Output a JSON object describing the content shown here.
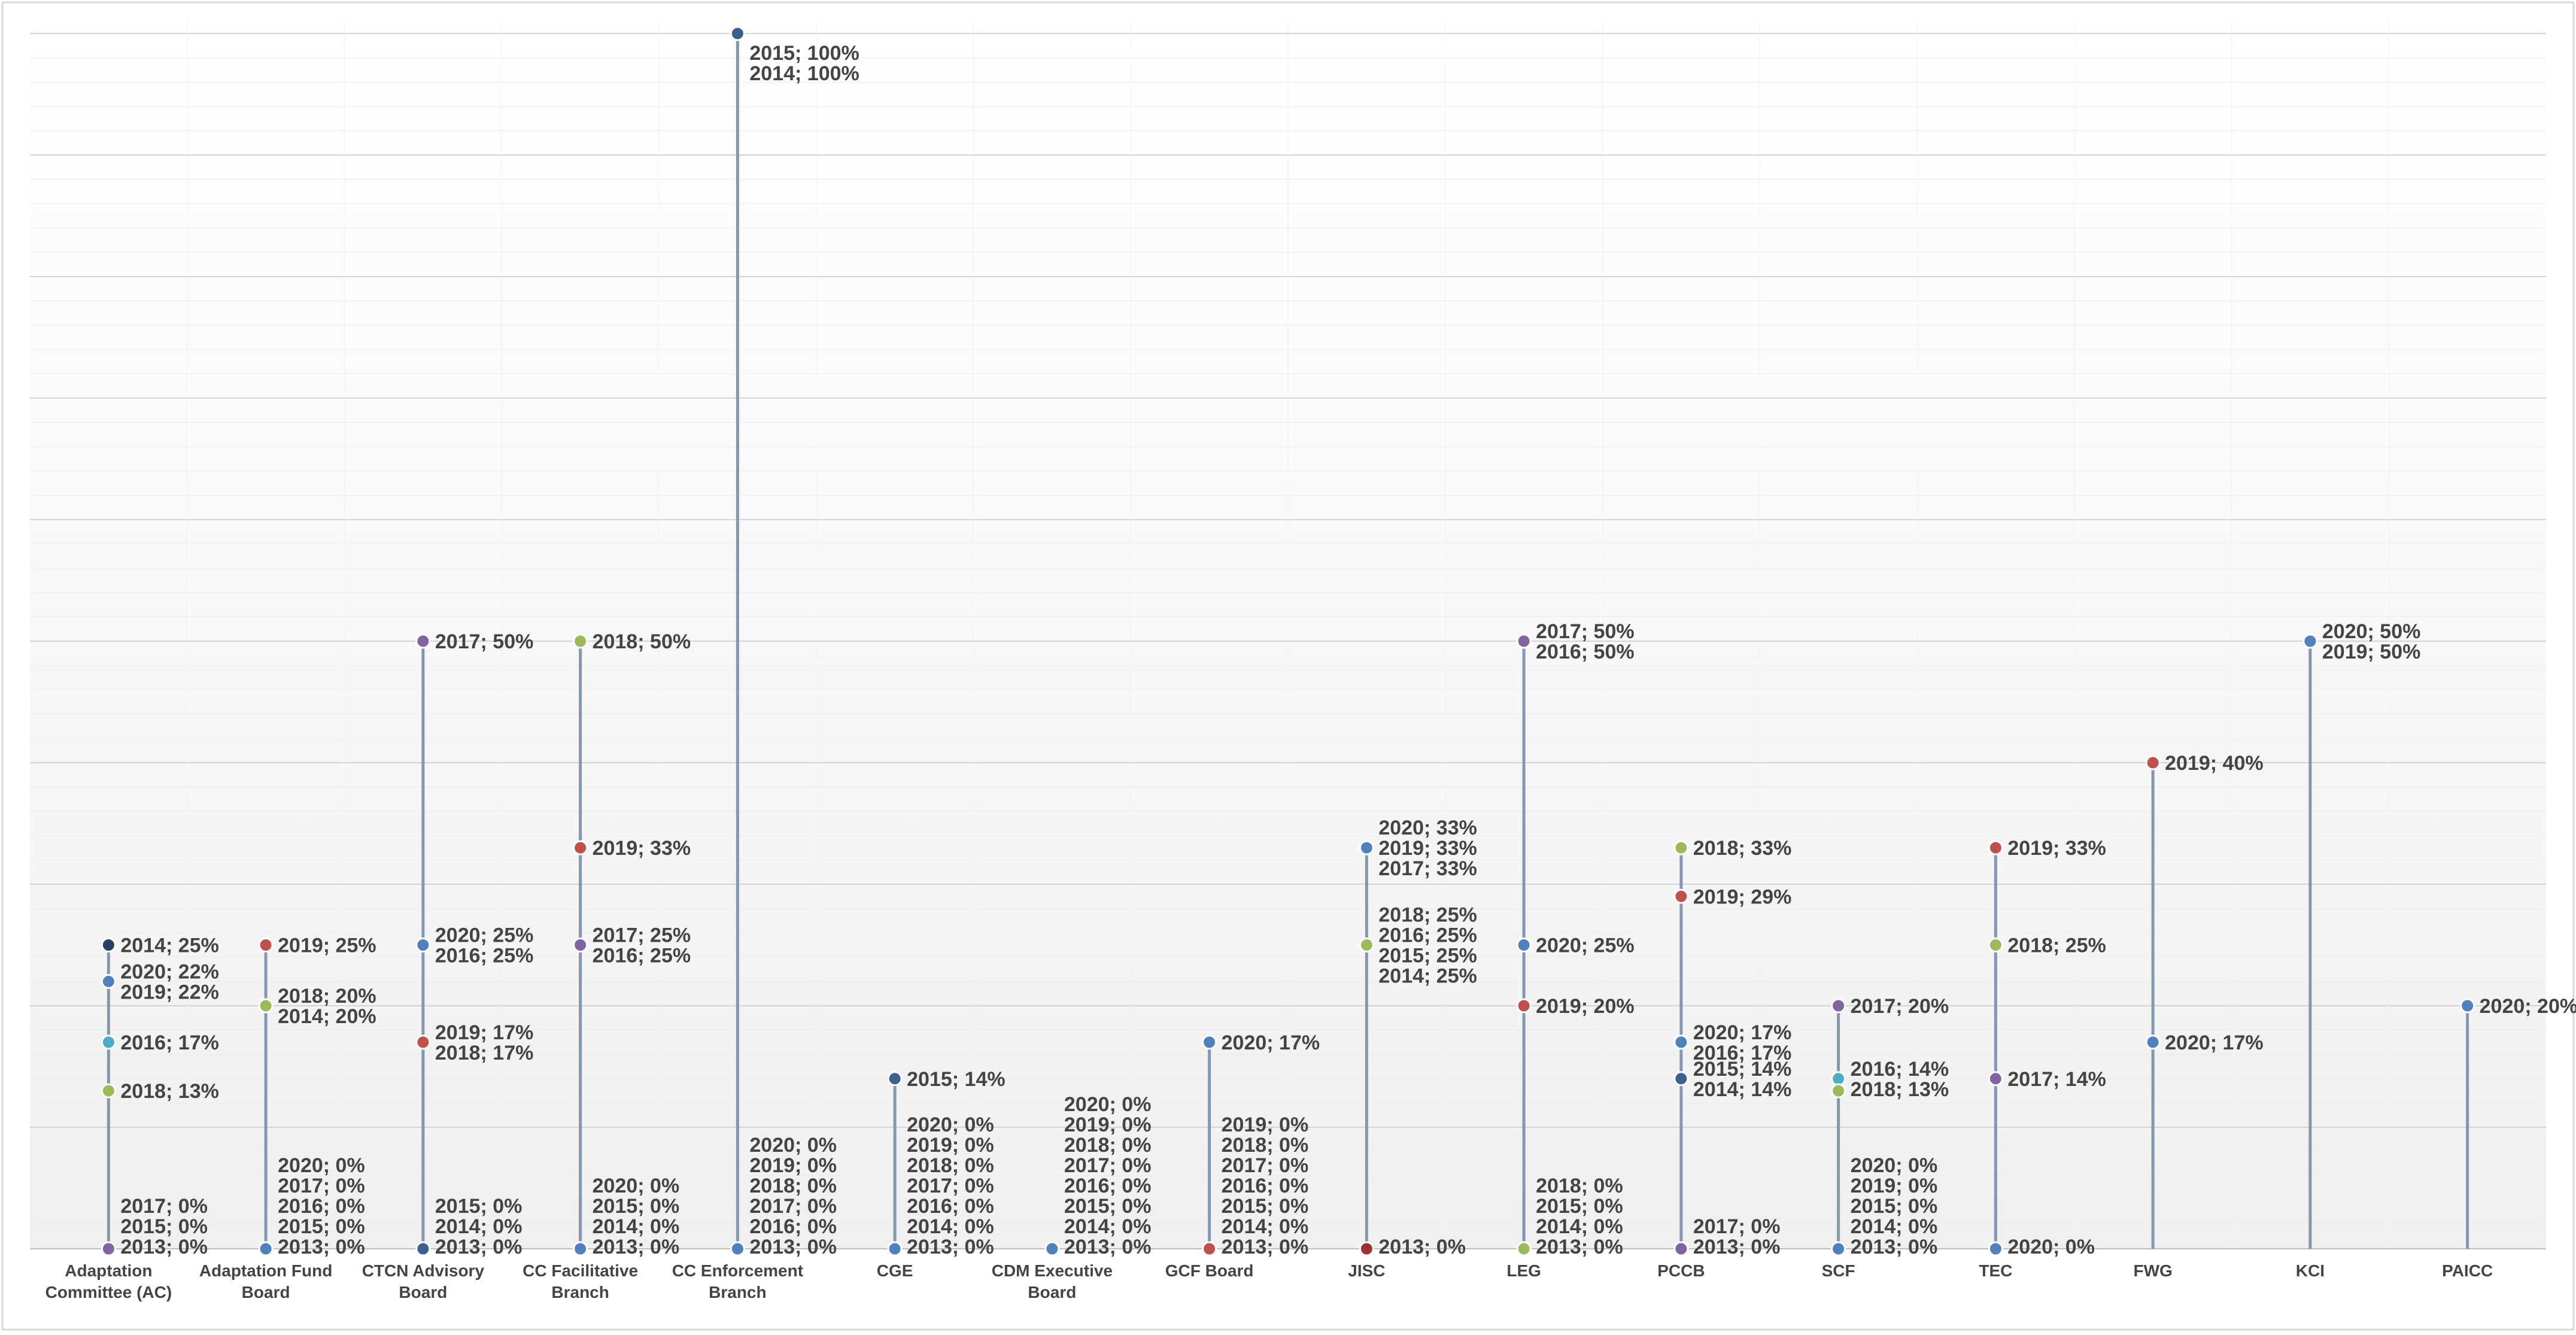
{
  "chart_data": {
    "type": "scatter",
    "title": "",
    "xlabel": "",
    "ylabel": "",
    "ylim": [
      0,
      100
    ],
    "grid": true,
    "legend": "none",
    "categories": [
      "Adaptation Committee (AC)",
      "Adaptation Fund Board",
      "CTCN Advisory Board",
      "CC Facilitative Branch",
      "CC Enforcement Branch",
      "CGE",
      "CDM Executive Board",
      "GCF Board",
      "JISC",
      "LEG",
      "PCCB",
      "SCF",
      "TEC",
      "FWG",
      "KCI",
      "PAICC"
    ],
    "category_lines": [
      [
        "Adaptation",
        "Committee (AC)"
      ],
      [
        "Adaptation Fund",
        "Board"
      ],
      [
        "CTCN Advisory",
        "Board"
      ],
      [
        "CC Facilitative",
        "Branch"
      ],
      [
        "CC Enforcement",
        "Branch"
      ],
      [
        "CGE"
      ],
      [
        "CDM Executive",
        "Board"
      ],
      [
        "GCF Board"
      ],
      [
        "JISC"
      ],
      [
        "LEG"
      ],
      [
        "PCCB"
      ],
      [
        "SCF"
      ],
      [
        "TEC"
      ],
      [
        "FWG"
      ],
      [
        "KCI"
      ],
      [
        "PAICC"
      ]
    ],
    "series": [
      {
        "name": "2013",
        "color": "#9b3335",
        "values": [
          0,
          0,
          0,
          0,
          0,
          0,
          0,
          0,
          0,
          0,
          0,
          0,
          null,
          null,
          null,
          null
        ]
      },
      {
        "name": "2014",
        "color": "#243f60",
        "values": [
          25,
          20,
          0,
          0,
          100,
          0,
          0,
          0,
          25,
          0,
          14,
          0,
          null,
          null,
          null,
          null
        ]
      },
      {
        "name": "2015",
        "color": "#3b5f8f",
        "values": [
          0,
          0,
          0,
          0,
          100,
          14,
          0,
          0,
          25,
          0,
          14,
          0,
          null,
          null,
          null,
          null
        ]
      },
      {
        "name": "2016",
        "color": "#4bacc6",
        "values": [
          17,
          0,
          25,
          25,
          0,
          0,
          0,
          0,
          25,
          50,
          17,
          14,
          null,
          null,
          null,
          null
        ]
      },
      {
        "name": "2017",
        "color": "#8064a2",
        "values": [
          0,
          0,
          50,
          25,
          0,
          0,
          0,
          0,
          33,
          50,
          0,
          20,
          14,
          null,
          null,
          null
        ]
      },
      {
        "name": "2018",
        "color": "#9bbb59",
        "values": [
          13,
          20,
          17,
          50,
          0,
          0,
          0,
          0,
          25,
          0,
          33,
          13,
          25,
          null,
          null,
          null
        ]
      },
      {
        "name": "2019",
        "color": "#c0504d",
        "values": [
          22,
          25,
          17,
          33,
          0,
          0,
          0,
          0,
          33,
          20,
          29,
          0,
          33,
          40,
          50,
          null
        ]
      },
      {
        "name": "2020",
        "color": "#4f81bd",
        "values": [
          22,
          0,
          25,
          0,
          0,
          0,
          0,
          17,
          33,
          25,
          17,
          0,
          0,
          17,
          50,
          20
        ]
      }
    ],
    "label_groups": [
      [
        {
          "v": 25,
          "t": [
            "2014; 25%"
          ]
        },
        {
          "v": 22,
          "t": [
            "2020; 22%",
            "2019; 22%"
          ]
        },
        {
          "v": 17,
          "t": [
            "2016; 17%"
          ]
        },
        {
          "v": 13,
          "t": [
            "2018; 13%"
          ]
        },
        {
          "v": 0,
          "t": [
            "2017; 0%",
            "2015; 0%",
            "2013; 0%"
          ]
        }
      ],
      [
        {
          "v": 25,
          "t": [
            "2019; 25%"
          ]
        },
        {
          "v": 20,
          "t": [
            "2018; 20%",
            "2014; 20%"
          ]
        },
        {
          "v": 0,
          "t": [
            "2020; 0%",
            "2017; 0%",
            "2016; 0%",
            "2015; 0%",
            "2013; 0%"
          ]
        }
      ],
      [
        {
          "v": 50,
          "t": [
            "2017; 50%"
          ]
        },
        {
          "v": 25,
          "t": [
            "2020; 25%",
            "2016; 25%"
          ]
        },
        {
          "v": 17,
          "t": [
            "2019; 17%",
            "2018; 17%"
          ]
        },
        {
          "v": 0,
          "t": [
            "2015; 0%",
            "2014; 0%",
            "2013; 0%"
          ]
        }
      ],
      [
        {
          "v": 50,
          "t": [
            "2018; 50%"
          ]
        },
        {
          "v": 33,
          "t": [
            "2019; 33%"
          ]
        },
        {
          "v": 25,
          "t": [
            "2017; 25%",
            "2016; 25%"
          ]
        },
        {
          "v": 0,
          "t": [
            "2020; 0%",
            "2015; 0%",
            "2014; 0%",
            "2013; 0%"
          ]
        }
      ],
      [
        {
          "v": 100,
          "t": [
            "2015; 100%",
            "2014; 100%"
          ]
        },
        {
          "v": 0,
          "t": [
            "2020; 0%",
            "2019; 0%",
            "2018; 0%",
            "2017; 0%",
            "2016; 0%",
            "2013; 0%"
          ]
        }
      ],
      [
        {
          "v": 14,
          "t": [
            "2015; 14%"
          ]
        },
        {
          "v": 0,
          "t": [
            "2020; 0%",
            "2019; 0%",
            "2018; 0%",
            "2017; 0%",
            "2016; 0%",
            "2014; 0%",
            "2013; 0%"
          ]
        }
      ],
      [
        {
          "v": 0,
          "t": [
            "2020; 0%",
            "2019; 0%",
            "2018; 0%",
            "2017; 0%",
            "2016; 0%",
            "2015; 0%",
            "2014; 0%",
            "2013; 0%"
          ]
        }
      ],
      [
        {
          "v": 17,
          "t": [
            "2020; 17%"
          ]
        },
        {
          "v": 0,
          "t": [
            "2019; 0%",
            "2018; 0%",
            "2017; 0%",
            "2016; 0%",
            "2015; 0%",
            "2014; 0%",
            "2013; 0%"
          ]
        }
      ],
      [
        {
          "v": 33,
          "t": [
            "2020; 33%",
            "2019; 33%",
            "2017; 33%"
          ]
        },
        {
          "v": 25,
          "t": [
            "2018; 25%",
            "2016; 25%",
            "2015; 25%",
            "2014; 25%"
          ]
        },
        {
          "v": 0,
          "t": [
            "2013; 0%"
          ]
        }
      ],
      [
        {
          "v": 50,
          "t": [
            "2017; 50%",
            "2016; 50%"
          ]
        },
        {
          "v": 25,
          "t": [
            "2020; 25%"
          ]
        },
        {
          "v": 20,
          "t": [
            "2019; 20%"
          ]
        },
        {
          "v": 0,
          "t": [
            "2018; 0%",
            "2015; 0%",
            "2014; 0%",
            "2013; 0%"
          ]
        }
      ],
      [
        {
          "v": 33,
          "t": [
            "2018; 33%"
          ]
        },
        {
          "v": 29,
          "t": [
            "2019; 29%"
          ]
        },
        {
          "v": 17,
          "t": [
            "2020; 17%",
            "2016; 17%"
          ]
        },
        {
          "v": 14,
          "t": [
            "2015; 14%",
            "2014; 14%"
          ]
        },
        {
          "v": 0,
          "t": [
            "2017; 0%",
            "2013; 0%"
          ]
        }
      ],
      [
        {
          "v": 20,
          "t": [
            "2017; 20%"
          ]
        },
        {
          "v": 14,
          "t": [
            "2016; 14%",
            "2018; 13%"
          ]
        },
        {
          "v": 0,
          "t": [
            "2020; 0%",
            "2019; 0%",
            "2015; 0%",
            "2014; 0%",
            "2013; 0%"
          ]
        }
      ],
      [
        {
          "v": 33,
          "t": [
            "2019; 33%"
          ]
        },
        {
          "v": 25,
          "t": [
            "2018; 25%"
          ]
        },
        {
          "v": 14,
          "t": [
            "2017; 14%"
          ]
        },
        {
          "v": 0,
          "t": [
            "2020; 0%"
          ]
        }
      ],
      [
        {
          "v": 40,
          "t": [
            "2019; 40%"
          ]
        },
        {
          "v": 17,
          "t": [
            "2020; 17%"
          ]
        }
      ],
      [
        {
          "v": 50,
          "t": [
            "2020; 50%",
            "2019; 50%"
          ]
        }
      ],
      [
        {
          "v": 20,
          "t": [
            "2020; 20%"
          ]
        }
      ]
    ]
  }
}
